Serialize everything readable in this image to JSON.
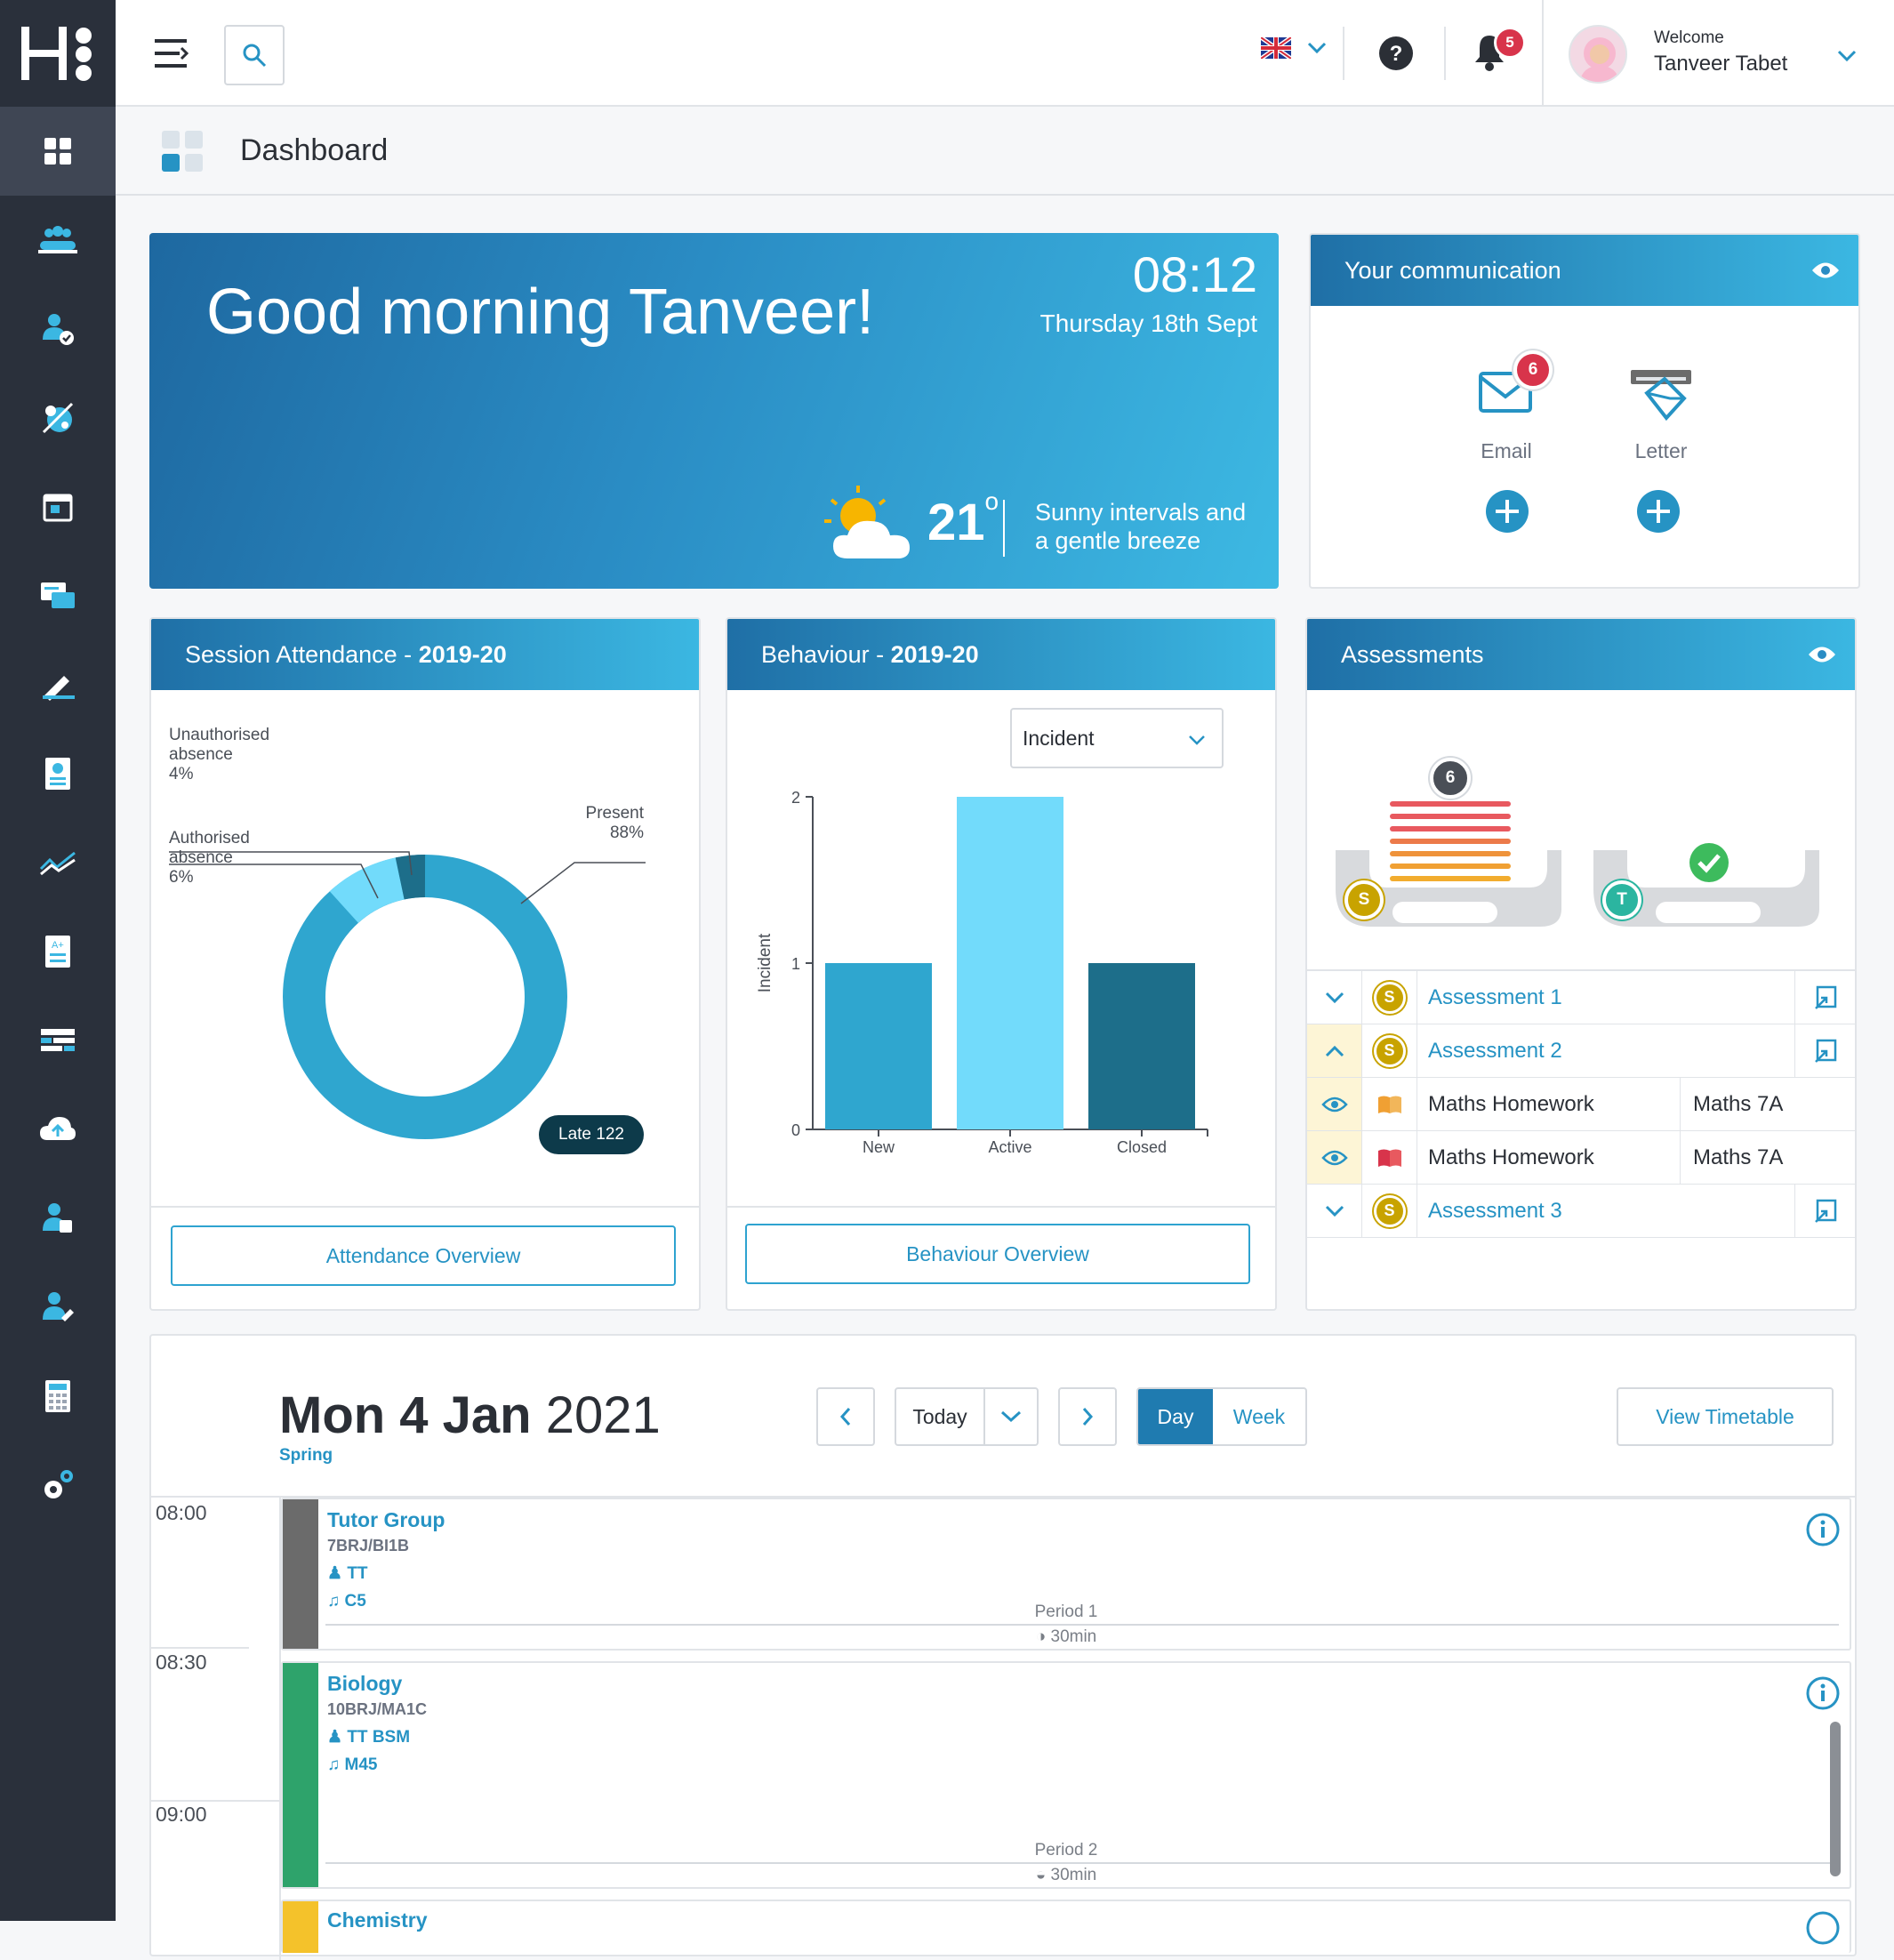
{
  "app": {
    "logo_text": "H"
  },
  "topbar": {
    "notifications_count": "5",
    "welcome_label": "Welcome",
    "user_name": "Tanveer Tabet"
  },
  "page": {
    "title": "Dashboard"
  },
  "greeting": {
    "text": "Good morning Tanveer!",
    "time": "08:12",
    "date": "Thursday 18th Sept",
    "temperature": "21",
    "degree": "o",
    "weather_line1": "Sunny intervals and",
    "weather_line2": "a gentle breeze"
  },
  "communication": {
    "title": "Your communication",
    "email_label": "Email",
    "email_count": "6",
    "letter_label": "Letter"
  },
  "attendance": {
    "title_prefix": "Session Attendance - ",
    "title_year": "2019-20",
    "unauth_label_1": "Unauthorised",
    "unauth_label_2": "absence",
    "unauth_value": "4%",
    "auth_label_1": "Authorised",
    "auth_label_2": "absence",
    "auth_value": "6%",
    "present_label": "Present",
    "present_value": "88%",
    "late_badge": "Late 122",
    "button": "Attendance Overview"
  },
  "behaviour": {
    "title_prefix": "Behaviour - ",
    "title_year": "2019-20",
    "filter_value": "Incident",
    "button": "Behaviour Overview"
  },
  "chart_data": {
    "type": "bar",
    "categories": [
      "New",
      "Active",
      "Closed"
    ],
    "values": [
      1,
      2,
      1
    ],
    "ylabel": "Incident",
    "ylim": [
      0,
      2
    ],
    "yticks": [
      "0",
      "1",
      "2"
    ],
    "colors": [
      "#2fa6cf",
      "#72dbfb",
      "#1d6e8a"
    ]
  },
  "assessments": {
    "title": "Assessments",
    "stack_count": "6",
    "s_badge": "S",
    "t_badge": "T",
    "rows": [
      {
        "label": "Assessment 1",
        "badge": "S"
      },
      {
        "label": "Assessment 2",
        "badge": "S"
      },
      {
        "label": "Maths Homework",
        "class": "Maths 7A"
      },
      {
        "label": "Maths Homework",
        "class": "Maths 7A"
      },
      {
        "label": "Assessment 3",
        "badge": "S"
      }
    ]
  },
  "timetable": {
    "date_bold": "Mon 4 Jan",
    "year": "2021",
    "term": "Spring",
    "today_btn": "Today",
    "day_btn": "Day",
    "week_btn": "Week",
    "view_btn": "View Timetable",
    "times": [
      "08:00",
      "08:30",
      "09:00"
    ],
    "lessons": [
      {
        "title": "Tutor Group",
        "group": "7BRJ/BI1B",
        "teacher": "TT",
        "room": "C5",
        "period": "Period 1",
        "duration": "30min",
        "color": "#6b6b6b"
      },
      {
        "title": "Biology",
        "group": "10BRJ/MA1C",
        "teacher": "TT  BSM",
        "room": "M45",
        "period": "Period 2",
        "duration": "30min",
        "color": "#2ea36b"
      },
      {
        "title": "Chemistry",
        "color": "#f4c22b"
      }
    ]
  }
}
